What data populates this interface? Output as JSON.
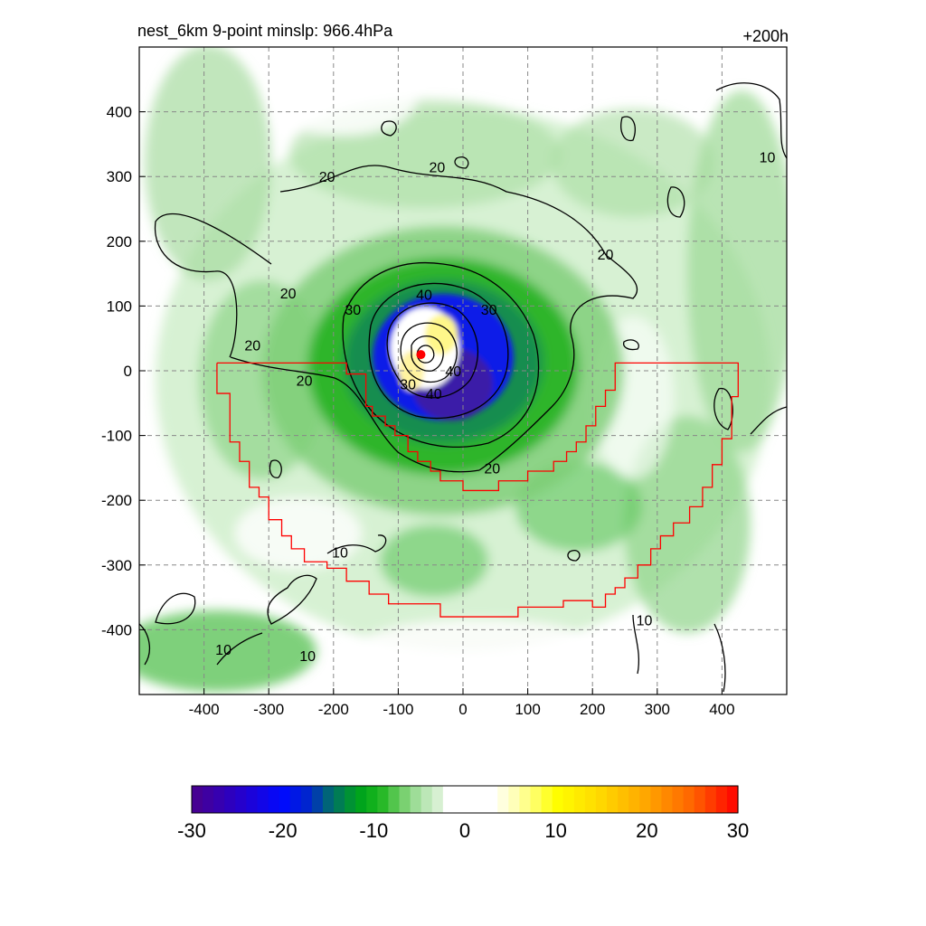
{
  "chart_data": {
    "type": "heatmap",
    "title": "nest_6km  9-point minslp: 966.4hPa",
    "time_label": "+200h",
    "xlabel": "",
    "ylabel": "",
    "xlim": [
      -500,
      500
    ],
    "ylim": [
      -500,
      500
    ],
    "xticks": [
      -400,
      -300,
      -200,
      -100,
      0,
      100,
      200,
      300,
      400
    ],
    "yticks": [
      400,
      300,
      200,
      100,
      0,
      -100,
      -200,
      -300,
      -400
    ],
    "grid": true,
    "colorbar": {
      "min": -30,
      "max": 30,
      "ticks": [
        -30,
        -20,
        -10,
        0,
        10,
        20,
        30
      ]
    },
    "center_marker": {
      "x": -65,
      "y": 25
    },
    "contour_levels": [
      10,
      20,
      30,
      40
    ],
    "contour_labels": [
      {
        "text": "10",
        "x": 470,
        "y": 330
      },
      {
        "text": "20",
        "x": -210,
        "y": 300
      },
      {
        "text": "20",
        "x": -40,
        "y": 315
      },
      {
        "text": "20",
        "x": 220,
        "y": 180
      },
      {
        "text": "20",
        "x": -270,
        "y": 120
      },
      {
        "text": "20",
        "x": -325,
        "y": 40
      },
      {
        "text": "20",
        "x": -245,
        "y": -15
      },
      {
        "text": "30",
        "x": -170,
        "y": 95
      },
      {
        "text": "40",
        "x": -60,
        "y": 118
      },
      {
        "text": "30",
        "x": 40,
        "y": 95
      },
      {
        "text": "40",
        "x": -15,
        "y": 0
      },
      {
        "text": "30",
        "x": -85,
        "y": -20
      },
      {
        "text": "40",
        "x": -45,
        "y": -35
      },
      {
        "text": "20",
        "x": 45,
        "y": -150
      },
      {
        "text": "10",
        "x": -190,
        "y": -280
      },
      {
        "text": "10",
        "x": 280,
        "y": -385
      },
      {
        "text": "10",
        "x": -370,
        "y": -430
      },
      {
        "text": "10",
        "x": -240,
        "y": -440
      }
    ],
    "red_polygon": [
      [
        -380,
        12
      ],
      [
        -180,
        12
      ],
      [
        -180,
        -5
      ],
      [
        -150,
        -5
      ],
      [
        -150,
        -55
      ],
      [
        -140,
        -55
      ],
      [
        -140,
        -70
      ],
      [
        -120,
        -70
      ],
      [
        -120,
        -85
      ],
      [
        -105,
        -85
      ],
      [
        -105,
        -100
      ],
      [
        -85,
        -100
      ],
      [
        -85,
        -125
      ],
      [
        -70,
        -125
      ],
      [
        -70,
        -140
      ],
      [
        -50,
        -140
      ],
      [
        -50,
        -155
      ],
      [
        -35,
        -155
      ],
      [
        -35,
        -170
      ],
      [
        0,
        -170
      ],
      [
        0,
        -185
      ],
      [
        55,
        -185
      ],
      [
        55,
        -170
      ],
      [
        100,
        -170
      ],
      [
        100,
        -155
      ],
      [
        140,
        -155
      ],
      [
        140,
        -140
      ],
      [
        160,
        -140
      ],
      [
        160,
        -125
      ],
      [
        175,
        -125
      ],
      [
        175,
        -110
      ],
      [
        190,
        -110
      ],
      [
        190,
        -85
      ],
      [
        205,
        -85
      ],
      [
        205,
        -55
      ],
      [
        220,
        -55
      ],
      [
        220,
        -30
      ],
      [
        235,
        -30
      ],
      [
        235,
        12
      ],
      [
        425,
        12
      ],
      [
        425,
        -40
      ],
      [
        415,
        -40
      ],
      [
        415,
        -105
      ],
      [
        400,
        -105
      ],
      [
        400,
        -145
      ],
      [
        385,
        -145
      ],
      [
        385,
        -180
      ],
      [
        370,
        -180
      ],
      [
        370,
        -210
      ],
      [
        350,
        -210
      ],
      [
        350,
        -235
      ],
      [
        325,
        -235
      ],
      [
        325,
        -255
      ],
      [
        305,
        -255
      ],
      [
        305,
        -275
      ],
      [
        290,
        -275
      ],
      [
        290,
        -300
      ],
      [
        270,
        -300
      ],
      [
        270,
        -320
      ],
      [
        250,
        -320
      ],
      [
        250,
        -335
      ],
      [
        235,
        -335
      ],
      [
        235,
        -345
      ],
      [
        220,
        -345
      ],
      [
        220,
        -365
      ],
      [
        200,
        -365
      ],
      [
        200,
        -355
      ],
      [
        155,
        -355
      ],
      [
        155,
        -365
      ],
      [
        85,
        -365
      ],
      [
        85,
        -380
      ],
      [
        -35,
        -380
      ],
      [
        -35,
        -360
      ],
      [
        -115,
        -360
      ],
      [
        -115,
        -345
      ],
      [
        -145,
        -345
      ],
      [
        -145,
        -325
      ],
      [
        -180,
        -325
      ],
      [
        -180,
        -305
      ],
      [
        -210,
        -305
      ],
      [
        -210,
        -295
      ],
      [
        -245,
        -295
      ],
      [
        -245,
        -275
      ],
      [
        -265,
        -275
      ],
      [
        -265,
        -255
      ],
      [
        -280,
        -255
      ],
      [
        -280,
        -230
      ],
      [
        -300,
        -230
      ],
      [
        -300,
        -195
      ],
      [
        -315,
        -195
      ],
      [
        -315,
        -180
      ],
      [
        -330,
        -180
      ],
      [
        -330,
        -140
      ],
      [
        -345,
        -140
      ],
      [
        -345,
        -110
      ],
      [
        -360,
        -110
      ],
      [
        -360,
        -35
      ],
      [
        -380,
        -35
      ]
    ]
  }
}
